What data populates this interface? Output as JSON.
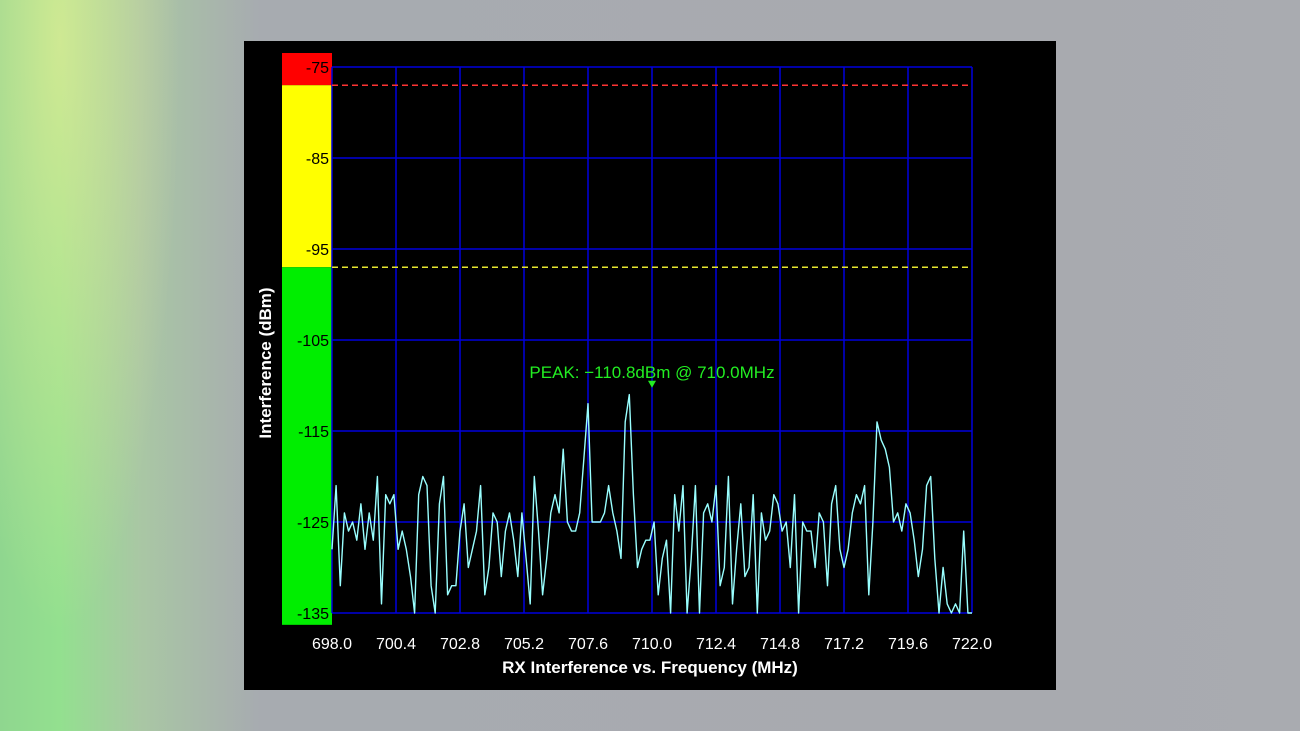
{
  "chart_data": {
    "type": "line",
    "xlabel": "RX Interference vs. Frequency (MHz)",
    "ylabel": "Interference (dBm)",
    "xlim": [
      698.0,
      722.0
    ],
    "ylim": [
      -135,
      -75
    ],
    "x_ticks": [
      "698.0",
      "700.4",
      "702.8",
      "705.2",
      "707.6",
      "710.0",
      "712.4",
      "714.8",
      "717.2",
      "719.6",
      "722.0"
    ],
    "y_ticks": [
      "-75",
      "-85",
      "-95",
      "-105",
      "-115",
      "-125",
      "-135"
    ],
    "grid": true,
    "peak_label": "PEAK: −110.8dBm @ 710.0MHz",
    "peak": {
      "x": 710.0,
      "y": -110.8
    },
    "threshold_red": -77,
    "threshold_yellow": -97,
    "color_bands": [
      {
        "from": -77,
        "to": -75,
        "color": "#ff0000"
      },
      {
        "from": -97,
        "to": -77,
        "color": "#ffff00"
      },
      {
        "from": -136.3,
        "to": -97,
        "color": "#00ee00"
      }
    ],
    "colors": {
      "line": "#99ffff",
      "grid": "#0000dd",
      "label": "#22ee22",
      "red_line": "#ff3333",
      "yellow_line": "#e8e830"
    },
    "series": [
      {
        "values": [
          -128,
          -121,
          -132,
          -124,
          -126,
          -125,
          -127,
          -123,
          -128,
          -124,
          -127,
          -120,
          -134,
          -122,
          -123,
          -122,
          -128,
          -126,
          -128,
          -131,
          -135,
          -122,
          -120,
          -121,
          -132,
          -135,
          -123,
          -120,
          -133,
          -132,
          -132,
          -126,
          -123,
          -130,
          -128,
          -126,
          -121,
          -133,
          -130,
          -124,
          -125,
          -131,
          -126,
          -124,
          -127,
          -131,
          -124,
          -129,
          -134,
          -120,
          -126,
          -133,
          -129,
          -124,
          -122,
          -124,
          -117,
          -125,
          -126,
          -126,
          -124,
          -118,
          -112,
          -125,
          -125,
          -125,
          -124,
          -121,
          -124,
          -126,
          -129,
          -114,
          -111,
          -122,
          -130,
          -128,
          -127,
          -127,
          -125,
          -133,
          -129,
          -127,
          -135,
          -122,
          -126,
          -121,
          -135,
          -129,
          -121,
          -135,
          -124,
          -123,
          -125,
          -121,
          -132,
          -130,
          -120,
          -134,
          -128,
          -123,
          -131,
          -130,
          -122,
          -135,
          -124,
          -127,
          -126,
          -122,
          -123,
          -126,
          -125,
          -130,
          -122,
          -135,
          -125,
          -126,
          -126,
          -130,
          -124,
          -125,
          -132,
          -123,
          -121,
          -128,
          -130,
          -128,
          -124,
          -122,
          -123,
          -121,
          -133,
          -125,
          -114,
          -116,
          -117,
          -119,
          -125,
          -124,
          -126,
          -123,
          -124,
          -127,
          -131,
          -128,
          -121,
          -120,
          -129,
          -135,
          -130,
          -134,
          -135,
          -134,
          -135,
          -126,
          -135,
          -135
        ]
      }
    ]
  }
}
